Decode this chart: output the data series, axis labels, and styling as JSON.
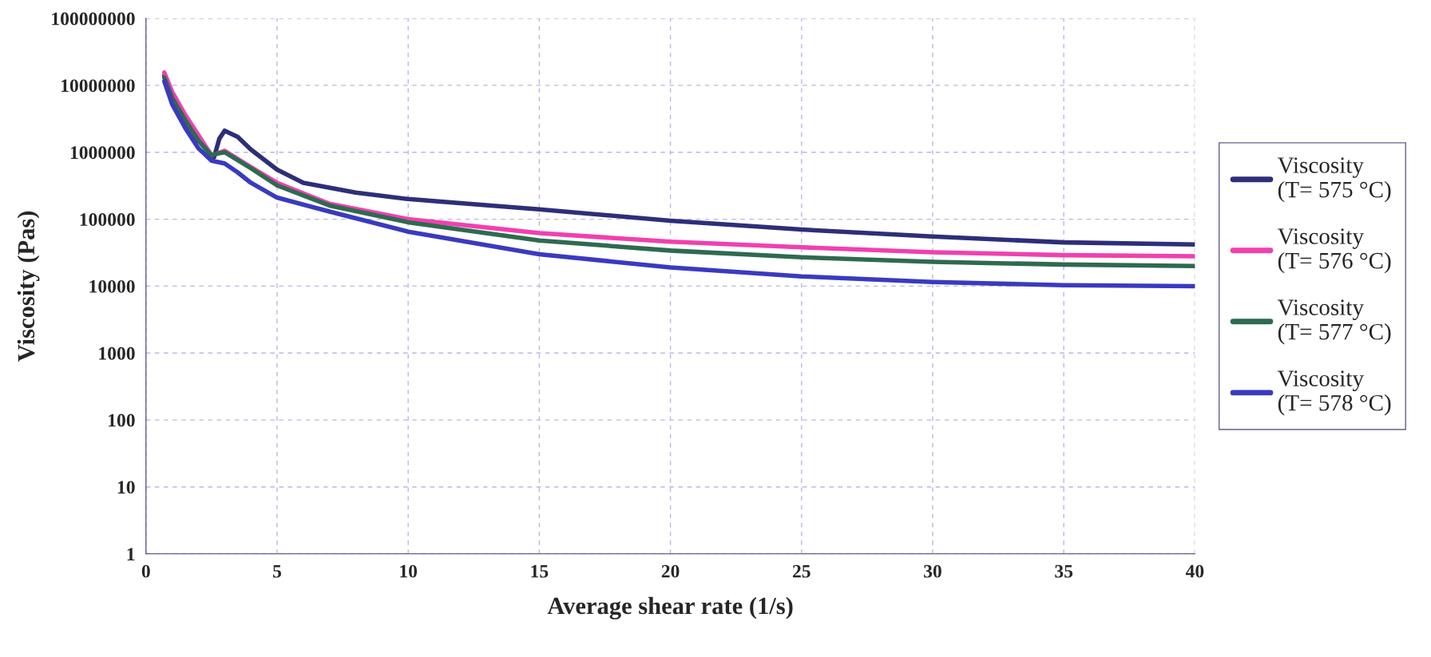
{
  "chart_data": {
    "type": "line",
    "xlabel": "Average shear rate (1/s)",
    "ylabel": "Viscosity (Pas)",
    "log": "y",
    "grid": true,
    "legend": "right",
    "marker": "none",
    "line_style": "solid",
    "xlim": [
      0,
      40
    ],
    "xticks": [
      0,
      5,
      10,
      15,
      20,
      25,
      30,
      35,
      40
    ],
    "ylim": [
      1,
      100000000
    ],
    "yticks": [
      1,
      10,
      100,
      1000,
      10000,
      100000,
      1000000,
      10000000,
      100000000
    ],
    "series": [
      {
        "name": "Viscosity\n(T= 575 °C)",
        "color": "#2e2e7a",
        "x": [
          0.7,
          1.0,
          1.5,
          2.0,
          2.5,
          2.6,
          2.8,
          3.0,
          3.5,
          4.0,
          5.0,
          6.0,
          8.0,
          10,
          15,
          20,
          25,
          30,
          35,
          40
        ],
        "values": [
          14000000,
          7000000,
          3000000,
          1500000,
          900000,
          850000,
          1600000,
          2100000,
          1700000,
          1100000,
          550000,
          350000,
          250000,
          200000,
          140000,
          95000,
          70000,
          55000,
          45000,
          42000
        ]
      },
      {
        "name": "Viscosity\n(T= 576 °C)",
        "color": "#f040b0",
        "x": [
          0.7,
          1.0,
          1.5,
          2.0,
          2.5,
          2.7,
          3.0,
          4.0,
          5.0,
          7.0,
          10,
          15,
          20,
          25,
          30,
          35,
          40
        ],
        "values": [
          15500000,
          8000000,
          3600000,
          1800000,
          900000,
          950000,
          1050000,
          600000,
          350000,
          170000,
          100000,
          62000,
          46000,
          38000,
          32000,
          29000,
          28000
        ]
      },
      {
        "name": "Viscosity\n(T= 577 °C)",
        "color": "#2e6a50",
        "x": [
          0.7,
          1.0,
          1.5,
          2.0,
          2.5,
          2.7,
          3.0,
          4.0,
          5.0,
          7.0,
          10,
          15,
          20,
          25,
          30,
          35,
          40
        ],
        "values": [
          13000000,
          6500000,
          3000000,
          1500000,
          900000,
          950000,
          1000000,
          580000,
          320000,
          160000,
          90000,
          48000,
          34000,
          27000,
          23000,
          21000,
          20000
        ]
      },
      {
        "name": "Viscosity\n(T= 578 °C)",
        "color": "#3a3ac0",
        "x": [
          0.7,
          1.0,
          1.5,
          2.0,
          2.5,
          3.0,
          3.5,
          4.0,
          5.0,
          7.0,
          10,
          15,
          20,
          25,
          30,
          35,
          40
        ],
        "values": [
          11500000,
          5200000,
          2300000,
          1150000,
          750000,
          680000,
          500000,
          350000,
          210000,
          130000,
          65000,
          30000,
          19000,
          14000,
          11500,
          10300,
          10000
        ]
      }
    ]
  }
}
